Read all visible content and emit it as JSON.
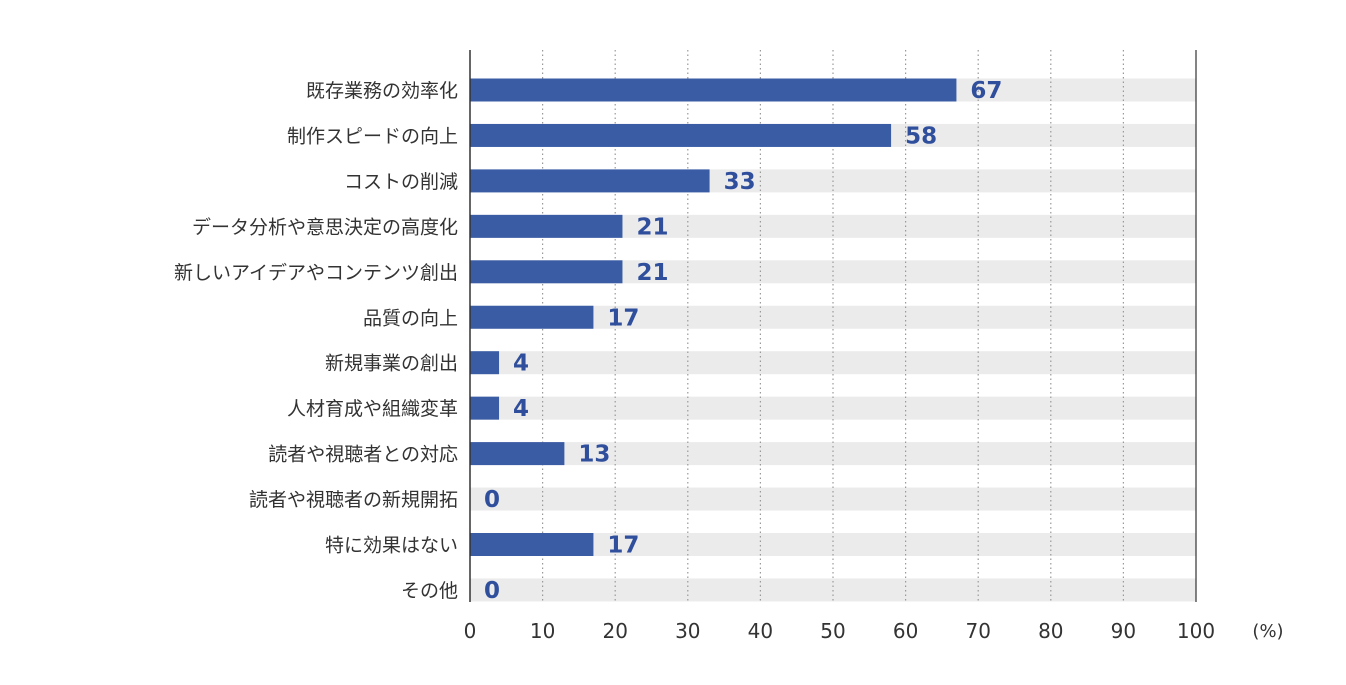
{
  "chart_data": {
    "type": "bar",
    "orientation": "horizontal",
    "categories": [
      "既存業務の効率化",
      "制作スピードの向上",
      "コストの削減",
      "データ分析や意思決定の高度化",
      "新しいアイデアやコンテンツ創出",
      "品質の向上",
      "新規事業の創出",
      "人材育成や組織変革",
      "読者や視聴者との対応",
      "読者や視聴者の新規開拓",
      "特に効果はない",
      "その他"
    ],
    "values": [
      67,
      58,
      33,
      21,
      21,
      17,
      4,
      4,
      13,
      0,
      17,
      0
    ],
    "xlim": [
      0,
      100
    ],
    "xticks": [
      0,
      10,
      20,
      30,
      40,
      50,
      60,
      70,
      80,
      90,
      100
    ],
    "unit": "(%)",
    "grid": true,
    "colors": {
      "bar": "#3a5ca5",
      "track": "#ebebeb",
      "value_text": "#2f4e9c",
      "grid": "#999999",
      "axis": "#333333"
    }
  }
}
